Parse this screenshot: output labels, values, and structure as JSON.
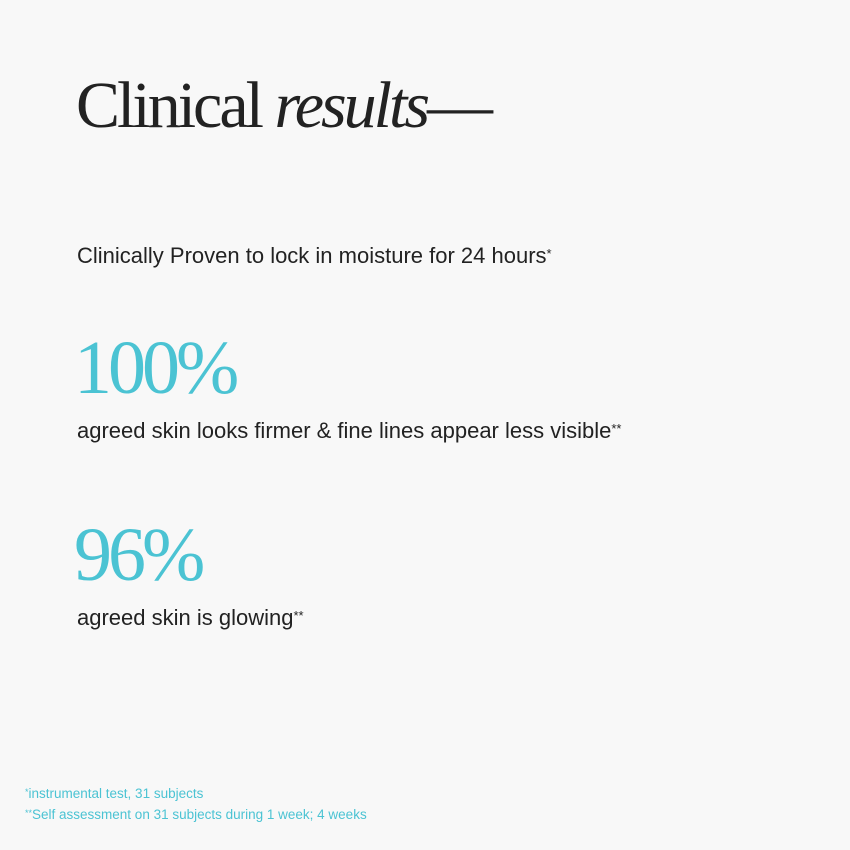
{
  "colors": {
    "accent": "#4bc3d3",
    "text": "#222222",
    "background": "#f8f8f8"
  },
  "title": {
    "regular": "Clinical",
    "italic": "results",
    "dash": "—"
  },
  "intro": {
    "text": "Clinically Proven to lock in moisture for 24 hours",
    "mark": "*"
  },
  "stats": [
    {
      "value": 100,
      "label": "100%",
      "text": "agreed skin looks firmer & fine lines appear less visible",
      "mark": "**"
    },
    {
      "value": 96,
      "label": "96%",
      "text": "agreed skin is glowing",
      "mark": "**"
    }
  ],
  "footnotes": [
    {
      "mark": "*",
      "text": "instrumental test, 31 subjects"
    },
    {
      "mark": "**",
      "text": "Self assessment on 31 subjects during 1 week; 4 weeks"
    }
  ]
}
